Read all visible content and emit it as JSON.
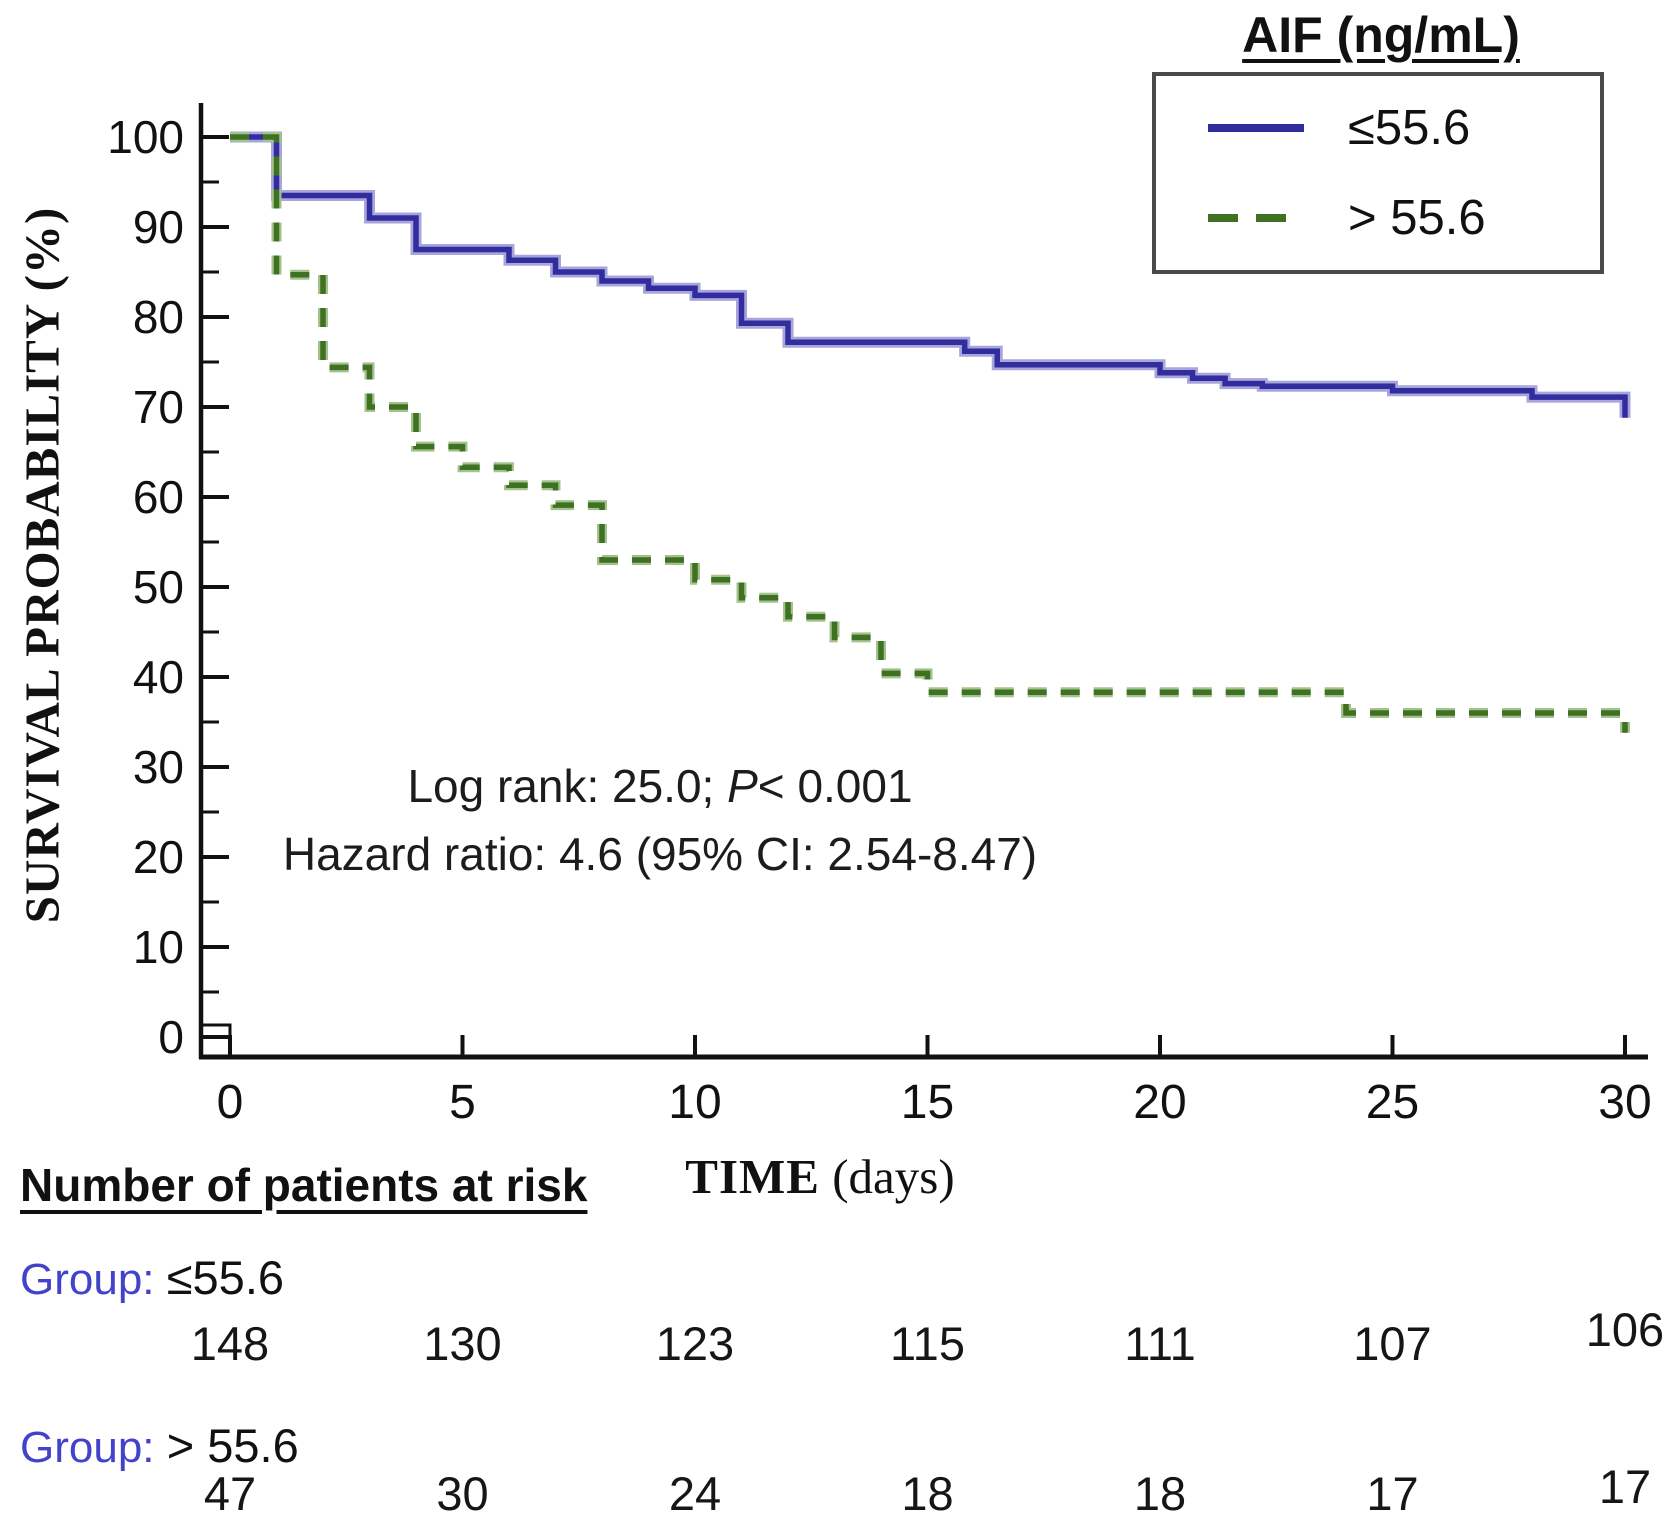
{
  "figure": {
    "ylabel": "SURVIVAL PROBABILITY (%)",
    "xlabel_bold": "TIME",
    "xlabel_rest": " (days)",
    "annotation_line1": {
      "pre": "Log rank: 25.0; ",
      "italic": "P",
      "post": "< 0.001"
    },
    "annotation_line2": "Hazard ratio: 4.6 (95% CI: 2.54-8.47)",
    "colors": {
      "group_label_accent": "#4242cb",
      "axis": "#111111",
      "legend_border": "#4a4a4a"
    }
  },
  "chart_data": {
    "type": "line",
    "subtype": "kaplan-meier-step-curves",
    "title": "AIF (ng/mL)",
    "xlabel": "TIME (days)",
    "ylabel": "SURVIVAL PROBABILITY (%)",
    "xlim": [
      0,
      30
    ],
    "ylim": [
      0,
      100
    ],
    "xticks": [
      0,
      5,
      10,
      15,
      20,
      25,
      30
    ],
    "yticks_major": [
      0,
      10,
      20,
      30,
      40,
      50,
      60,
      70,
      80,
      90,
      100
    ],
    "ytick_minor_step": 5,
    "grid": false,
    "legend_position": "top-right",
    "annotations": [
      "Log rank: 25.0; P< 0.001",
      "Hazard ratio: 4.6 (95% CI: 2.54-8.47)"
    ],
    "series": [
      {
        "name": "≤55.6",
        "style": "solid",
        "color": "#322d9e",
        "halo": "#a7a5da",
        "steps": [
          [
            0,
            100
          ],
          [
            1,
            93.5
          ],
          [
            3,
            91
          ],
          [
            4,
            87.5
          ],
          [
            6,
            86.3
          ],
          [
            7,
            85
          ],
          [
            8,
            84
          ],
          [
            9,
            83.2
          ],
          [
            10,
            82.4
          ],
          [
            11,
            79.3
          ],
          [
            12,
            77.2
          ],
          [
            15.8,
            76.2
          ],
          [
            16.5,
            74.7
          ],
          [
            20,
            73.8
          ],
          [
            20.7,
            73.2
          ],
          [
            21.4,
            72.6
          ],
          [
            22.2,
            72.3
          ],
          [
            25,
            71.8
          ],
          [
            28,
            71.1
          ],
          [
            30,
            68.8
          ]
        ]
      },
      {
        "name": "> 55.6",
        "style": "dashed",
        "color": "#3e7121",
        "halo": "#a3c28e",
        "steps": [
          [
            0,
            100
          ],
          [
            1,
            84.7
          ],
          [
            2,
            74.4
          ],
          [
            3,
            70
          ],
          [
            4,
            65.6
          ],
          [
            5,
            63.3
          ],
          [
            6,
            61.3
          ],
          [
            7,
            59.1
          ],
          [
            8,
            53
          ],
          [
            10,
            50.8
          ],
          [
            11,
            48.8
          ],
          [
            12,
            46.7
          ],
          [
            13,
            44.4
          ],
          [
            14,
            40.4
          ],
          [
            15,
            38.3
          ],
          [
            24,
            36
          ],
          [
            30,
            33.8
          ]
        ]
      }
    ],
    "at_risk": {
      "header": "Number of patients at risk",
      "times": [
        0,
        5,
        10,
        15,
        20,
        25,
        30
      ],
      "groups": [
        {
          "label_prefix": "Group:",
          "label": "≤55.6",
          "counts": [
            148,
            130,
            123,
            115,
            111,
            107,
            106
          ]
        },
        {
          "label_prefix": "Group:",
          "label": "> 55.6",
          "counts": [
            47,
            30,
            24,
            18,
            18,
            17,
            17
          ]
        }
      ]
    }
  }
}
